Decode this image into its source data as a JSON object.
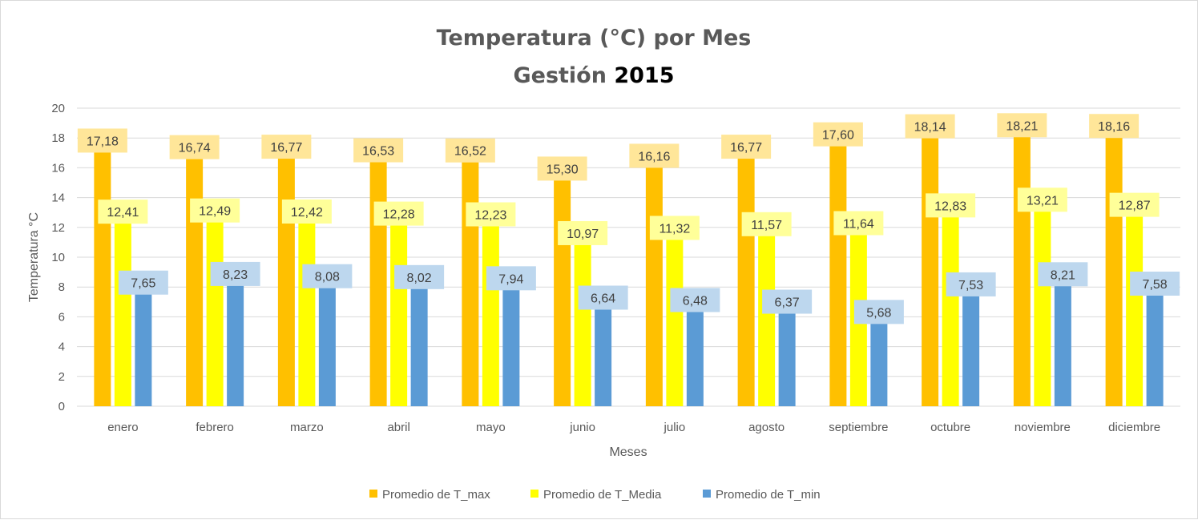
{
  "chart_data": {
    "type": "bar",
    "title_line1": "Temperatura (°C) por Mes",
    "title_line2_prefix": "Gestión ",
    "title_line2_year": "2015",
    "xlabel": "Meses",
    "ylabel": "Temperatura °C",
    "ylim": [
      0,
      20
    ],
    "yticks": [
      0,
      2,
      4,
      6,
      8,
      10,
      12,
      14,
      16,
      18,
      20
    ],
    "grid": true,
    "legend_position": "bottom",
    "categories": [
      "enero",
      "febrero",
      "marzo",
      "abril",
      "mayo",
      "junio",
      "julio",
      "agosto",
      "septiembre",
      "octubre",
      "noviembre",
      "diciembre"
    ],
    "series": [
      {
        "name": "Promedio de T_max",
        "color": "#FFC000",
        "label_bg": "#FFE699",
        "values": [
          17.18,
          16.74,
          16.77,
          16.53,
          16.52,
          15.3,
          16.16,
          16.77,
          17.6,
          18.14,
          18.21,
          18.16
        ],
        "labels": [
          "17,18",
          "16,74",
          "16,77",
          "16,53",
          "16,52",
          "15,30",
          "16,16",
          "16,77",
          "17,60",
          "18,14",
          "18,21",
          "18,16"
        ]
      },
      {
        "name": "Promedio de T_Media",
        "color": "#FFFF00",
        "label_bg": "#FFFF99",
        "values": [
          12.41,
          12.49,
          12.42,
          12.28,
          12.23,
          10.97,
          11.32,
          11.57,
          11.64,
          12.83,
          13.21,
          12.87
        ],
        "labels": [
          "12,41",
          "12,49",
          "12,42",
          "12,28",
          "12,23",
          "10,97",
          "11,32",
          "11,57",
          "11,64",
          "12,83",
          "13,21",
          "12,87"
        ]
      },
      {
        "name": "Promedio de T_min",
        "color": "#5B9BD5",
        "label_bg": "#BDD7EE",
        "values": [
          7.65,
          8.23,
          8.08,
          8.02,
          7.94,
          6.64,
          6.48,
          6.37,
          5.68,
          7.53,
          8.21,
          7.58
        ],
        "labels": [
          "7,65",
          "8,23",
          "8,08",
          "8,02",
          "7,94",
          "6,64",
          "6,48",
          "6,37",
          "5,68",
          "7,53",
          "8,21",
          "7,58"
        ]
      }
    ]
  }
}
